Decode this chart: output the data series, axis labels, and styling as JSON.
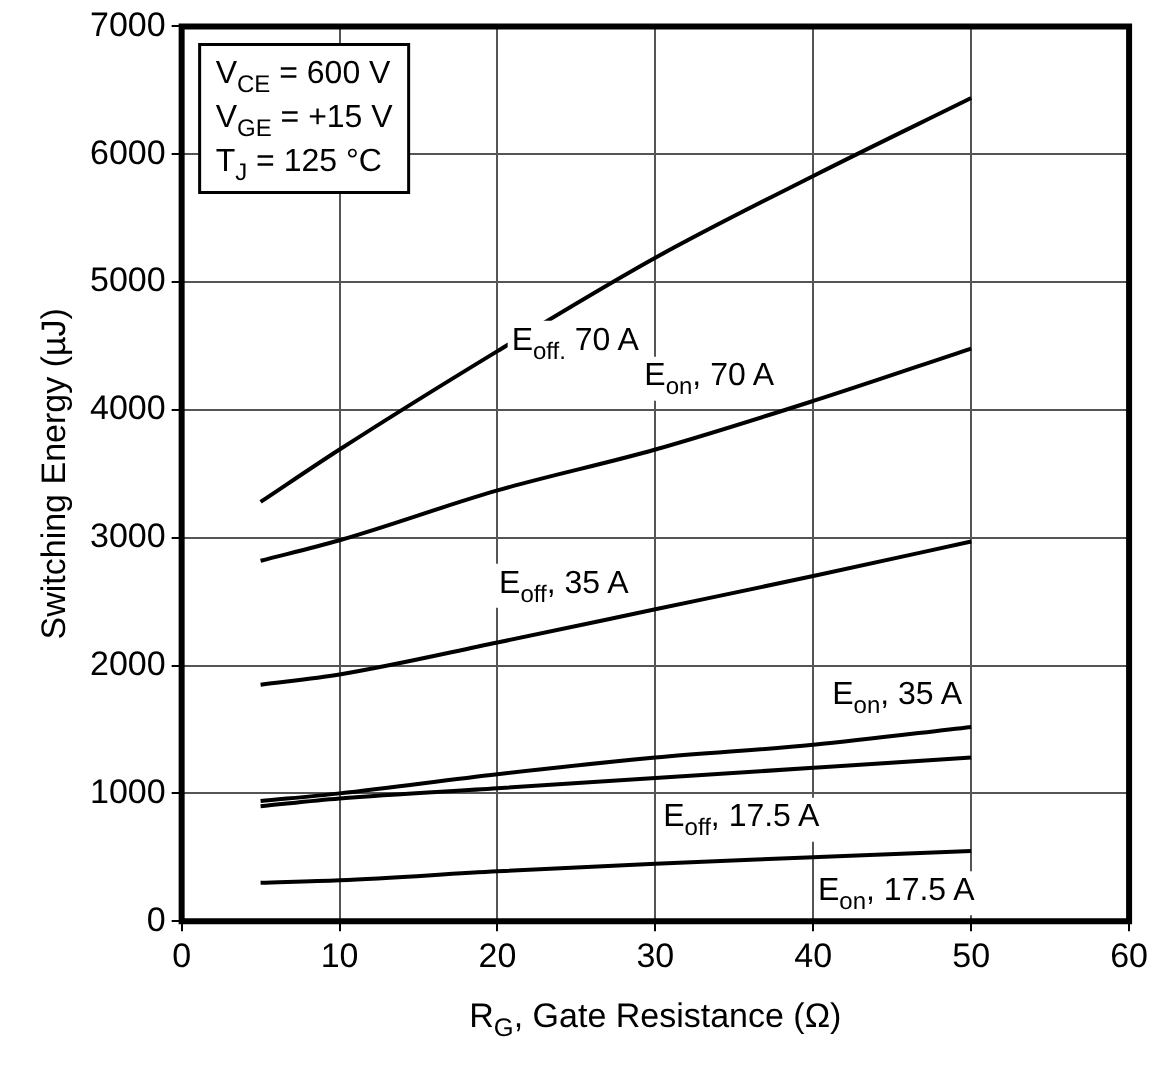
{
  "chart_data": {
    "type": "line",
    "xlabel": "R$_{G}$, Gate Resistance (Ω)",
    "ylabel": "Switching Energy (µJ)",
    "xlim": [
      0,
      60
    ],
    "xticks": [
      0,
      10,
      20,
      30,
      40,
      50,
      60
    ],
    "ylim": [
      0,
      7000
    ],
    "yticks": [
      0,
      1000,
      2000,
      3000,
      4000,
      5000,
      6000,
      7000
    ],
    "grid": true,
    "legend": false,
    "marker": "none",
    "line_style": "solid",
    "series": [
      {
        "name": "E$_{off.}$ 70 A",
        "color": "#000000",
        "x": [
          5,
          10,
          20,
          30,
          40,
          50
        ],
        "values": [
          3280,
          3690,
          4460,
          5190,
          5830,
          6440
        ]
      },
      {
        "name": "E$_{on}$, 70 A",
        "color": "#000000",
        "x": [
          5,
          10,
          20,
          30,
          40,
          50
        ],
        "values": [
          2820,
          2980,
          3370,
          3690,
          4070,
          4480
        ]
      },
      {
        "name": "E$_{off}$, 35 A",
        "color": "#000000",
        "x": [
          5,
          10,
          20,
          30,
          40,
          50
        ],
        "values": [
          1850,
          1930,
          2180,
          2440,
          2700,
          2970
        ]
      },
      {
        "name": "E$_{on}$, 35 A",
        "color": "#000000",
        "x": [
          5,
          10,
          20,
          30,
          40,
          50
        ],
        "values": [
          940,
          1000,
          1150,
          1280,
          1380,
          1520
        ]
      },
      {
        "name": "E$_{off}$, 17.5 A",
        "color": "#000000",
        "x": [
          5,
          10,
          20,
          30,
          40,
          50
        ],
        "values": [
          900,
          960,
          1040,
          1120,
          1200,
          1280
        ]
      },
      {
        "name": "E$_{on}$, 17.5 A",
        "color": "#000000",
        "x": [
          5,
          10,
          20,
          30,
          40,
          50
        ],
        "values": [
          300,
          320,
          390,
          450,
          500,
          550
        ]
      }
    ],
    "annotations": [
      "V$_{CE}$ = 600 V",
      "V$_{GE}$ = +15 V",
      "T$_{J}$ = 125 °C"
    ]
  }
}
